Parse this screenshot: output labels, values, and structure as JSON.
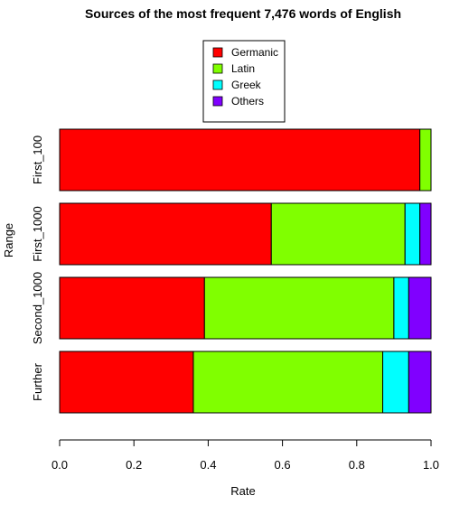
{
  "chart_data": {
    "type": "bar",
    "orientation": "horizontal",
    "stacked": true,
    "title": "Sources of the most frequent 7,476 words of English",
    "xlabel": "Rate",
    "ylabel": "Range",
    "xlim": [
      0,
      1
    ],
    "x_ticks": [
      "0.0",
      "0.2",
      "0.4",
      "0.6",
      "0.8",
      "1.0"
    ],
    "categories": [
      "First_100",
      "First_1000",
      "Second_1000",
      "Further"
    ],
    "series": [
      {
        "name": "Germanic",
        "color": "#ff0000",
        "values": [
          0.97,
          0.57,
          0.39,
          0.36
        ]
      },
      {
        "name": "Latin",
        "color": "#80ff00",
        "values": [
          0.03,
          0.36,
          0.51,
          0.51
        ]
      },
      {
        "name": "Greek",
        "color": "#00ffff",
        "values": [
          0.0,
          0.04,
          0.04,
          0.07
        ]
      },
      {
        "name": "Others",
        "color": "#8000ff",
        "values": [
          0.0,
          0.03,
          0.06,
          0.06
        ]
      }
    ],
    "grid": false,
    "legend_position": "top-center"
  }
}
